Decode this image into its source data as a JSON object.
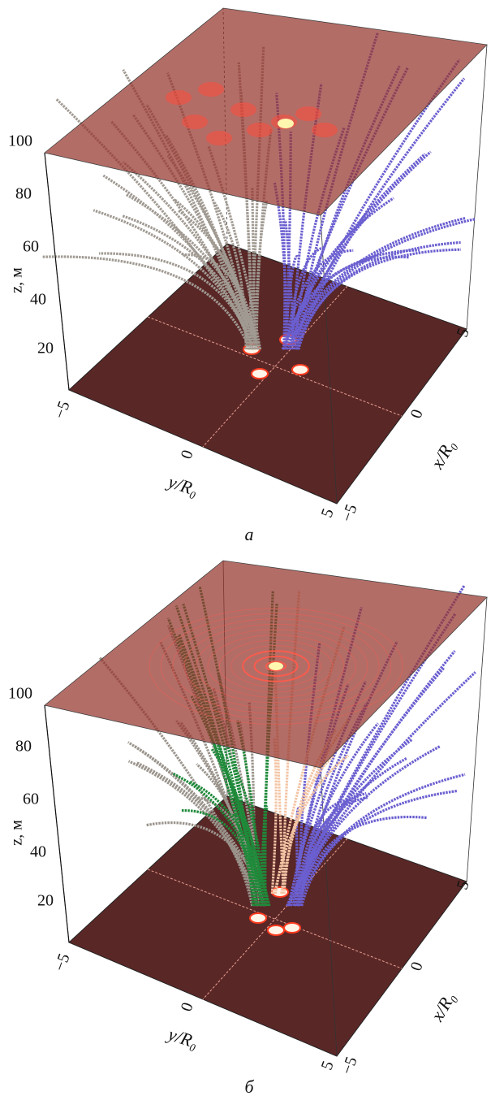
{
  "panels": [
    {
      "label": "а",
      "z_axis_label": "z, м",
      "z_ticks": [
        "100",
        "80",
        "60",
        "40",
        "20"
      ],
      "y_axis_label": "y/R₀",
      "y_ticks": [
        "−5",
        "0",
        "5"
      ],
      "x_axis_label": "x/R₀",
      "x_ticks": [
        "5",
        "0",
        "−5"
      ]
    },
    {
      "label": "б",
      "z_axis_label": "z, м",
      "z_ticks": [
        "100",
        "80",
        "60",
        "40",
        "20"
      ],
      "y_axis_label": "y/R₀",
      "y_ticks": [
        "−5",
        "0",
        "5"
      ],
      "x_axis_label": "x/R₀",
      "x_ticks": [
        "5",
        "0",
        "−5"
      ]
    }
  ]
}
